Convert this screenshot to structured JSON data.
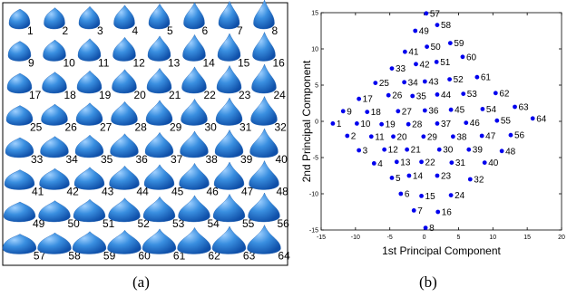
{
  "panel_a": {
    "caption": "(a)",
    "shape_color": "#3a8fe0",
    "shape_highlight": "#9fd0ff",
    "shape_shadow": "#0f4fa8",
    "labels": [
      "1",
      "2",
      "3",
      "4",
      "5",
      "6",
      "7",
      "8",
      "9",
      "10",
      "11",
      "12",
      "13",
      "14",
      "15",
      "16",
      "17",
      "18",
      "19",
      "20",
      "21",
      "22",
      "23",
      "24",
      "25",
      "26",
      "27",
      "28",
      "29",
      "30",
      "31",
      "32",
      "33",
      "34",
      "35",
      "36",
      "37",
      "38",
      "39",
      "40",
      "41",
      "42",
      "43",
      "44",
      "45",
      "46",
      "47",
      "48",
      "49",
      "50",
      "51",
      "52",
      "53",
      "54",
      "55",
      "56",
      "57",
      "58",
      "59",
      "60",
      "61",
      "62",
      "63",
      "64"
    ]
  },
  "panel_b": {
    "caption": "(b)",
    "chart_data": {
      "type": "scatter",
      "xlabel": "1st Principal Component",
      "ylabel": "2nd Principal Component",
      "xlim": [
        -15,
        20
      ],
      "ylim": [
        -15,
        15
      ],
      "xticks": [
        "-15",
        "-10",
        "-5",
        "0",
        "5",
        "10",
        "15",
        "20"
      ],
      "yticks": [
        "-15",
        "-10",
        "-5",
        "0",
        "5",
        "10",
        "15"
      ],
      "grid": false,
      "point_color": "#0000ee",
      "points": [
        {
          "label": "1",
          "x": -13.3,
          "y": -0.3
        },
        {
          "label": "2",
          "x": -11.2,
          "y": -2.0
        },
        {
          "label": "3",
          "x": -9.5,
          "y": -4.0
        },
        {
          "label": "4",
          "x": -7.3,
          "y": -5.8
        },
        {
          "label": "5",
          "x": -4.7,
          "y": -7.8
        },
        {
          "label": "6",
          "x": -3.4,
          "y": -10.0
        },
        {
          "label": "7",
          "x": -1.5,
          "y": -12.3
        },
        {
          "label": "8",
          "x": 0.2,
          "y": -14.7
        },
        {
          "label": "9",
          "x": -11.8,
          "y": 1.4
        },
        {
          "label": "10",
          "x": -9.8,
          "y": -0.3
        },
        {
          "label": "11",
          "x": -7.7,
          "y": -2.1
        },
        {
          "label": "12",
          "x": -5.8,
          "y": -3.9
        },
        {
          "label": "13",
          "x": -4.0,
          "y": -5.6
        },
        {
          "label": "14",
          "x": -2.2,
          "y": -7.5
        },
        {
          "label": "15",
          "x": -0.4,
          "y": -10.3
        },
        {
          "label": "16",
          "x": 2.0,
          "y": -12.5
        },
        {
          "label": "17",
          "x": -9.5,
          "y": 3.1
        },
        {
          "label": "18",
          "x": -8.3,
          "y": 1.3
        },
        {
          "label": "19",
          "x": -6.2,
          "y": -0.4
        },
        {
          "label": "20",
          "x": -4.5,
          "y": -2.1
        },
        {
          "label": "21",
          "x": -2.5,
          "y": -3.9
        },
        {
          "label": "22",
          "x": -0.4,
          "y": -5.6
        },
        {
          "label": "23",
          "x": 1.9,
          "y": -7.5
        },
        {
          "label": "24",
          "x": 3.9,
          "y": -10.2
        },
        {
          "label": "25",
          "x": -7.1,
          "y": 5.3
        },
        {
          "label": "26",
          "x": -5.2,
          "y": 3.6
        },
        {
          "label": "27",
          "x": -3.8,
          "y": 1.4
        },
        {
          "label": "28",
          "x": -2.3,
          "y": -0.4
        },
        {
          "label": "29",
          "x": -0.1,
          "y": -2.1
        },
        {
          "label": "30",
          "x": 2.2,
          "y": -3.9
        },
        {
          "label": "31",
          "x": 4.0,
          "y": -5.7
        },
        {
          "label": "32",
          "x": 6.7,
          "y": -8.0
        },
        {
          "label": "33",
          "x": -4.7,
          "y": 7.3
        },
        {
          "label": "34",
          "x": -2.9,
          "y": 5.4
        },
        {
          "label": "35",
          "x": -1.7,
          "y": 3.5
        },
        {
          "label": "36",
          "x": 0.1,
          "y": 1.5
        },
        {
          "label": "37",
          "x": 1.9,
          "y": -0.3
        },
        {
          "label": "38",
          "x": 4.2,
          "y": -2.1
        },
        {
          "label": "39",
          "x": 6.5,
          "y": -3.9
        },
        {
          "label": "40",
          "x": 8.8,
          "y": -5.7
        },
        {
          "label": "41",
          "x": -2.8,
          "y": 9.6
        },
        {
          "label": "42",
          "x": -1.2,
          "y": 7.9
        },
        {
          "label": "43",
          "x": 0.1,
          "y": 5.5
        },
        {
          "label": "44",
          "x": 1.9,
          "y": 3.7
        },
        {
          "label": "45",
          "x": 3.9,
          "y": 1.6
        },
        {
          "label": "46",
          "x": 6.1,
          "y": -0.2
        },
        {
          "label": "47",
          "x": 8.4,
          "y": -2.0
        },
        {
          "label": "48",
          "x": 11.3,
          "y": -4.1
        },
        {
          "label": "49",
          "x": -1.3,
          "y": 12.5
        },
        {
          "label": "50",
          "x": 0.4,
          "y": 10.3
        },
        {
          "label": "51",
          "x": 1.8,
          "y": 8.2
        },
        {
          "label": "52",
          "x": 3.7,
          "y": 5.8
        },
        {
          "label": "53",
          "x": 5.7,
          "y": 3.8
        },
        {
          "label": "54",
          "x": 8.5,
          "y": 1.7
        },
        {
          "label": "55",
          "x": 10.6,
          "y": 0.1
        },
        {
          "label": "56",
          "x": 12.6,
          "y": -1.9
        },
        {
          "label": "57",
          "x": 0.3,
          "y": 14.9
        },
        {
          "label": "58",
          "x": 1.9,
          "y": 13.3
        },
        {
          "label": "59",
          "x": 3.8,
          "y": 10.8
        },
        {
          "label": "60",
          "x": 5.6,
          "y": 8.9
        },
        {
          "label": "61",
          "x": 7.7,
          "y": 6.1
        },
        {
          "label": "62",
          "x": 10.4,
          "y": 3.9
        },
        {
          "label": "63",
          "x": 13.2,
          "y": 2.0
        },
        {
          "label": "64",
          "x": 15.8,
          "y": 0.4
        }
      ]
    }
  }
}
